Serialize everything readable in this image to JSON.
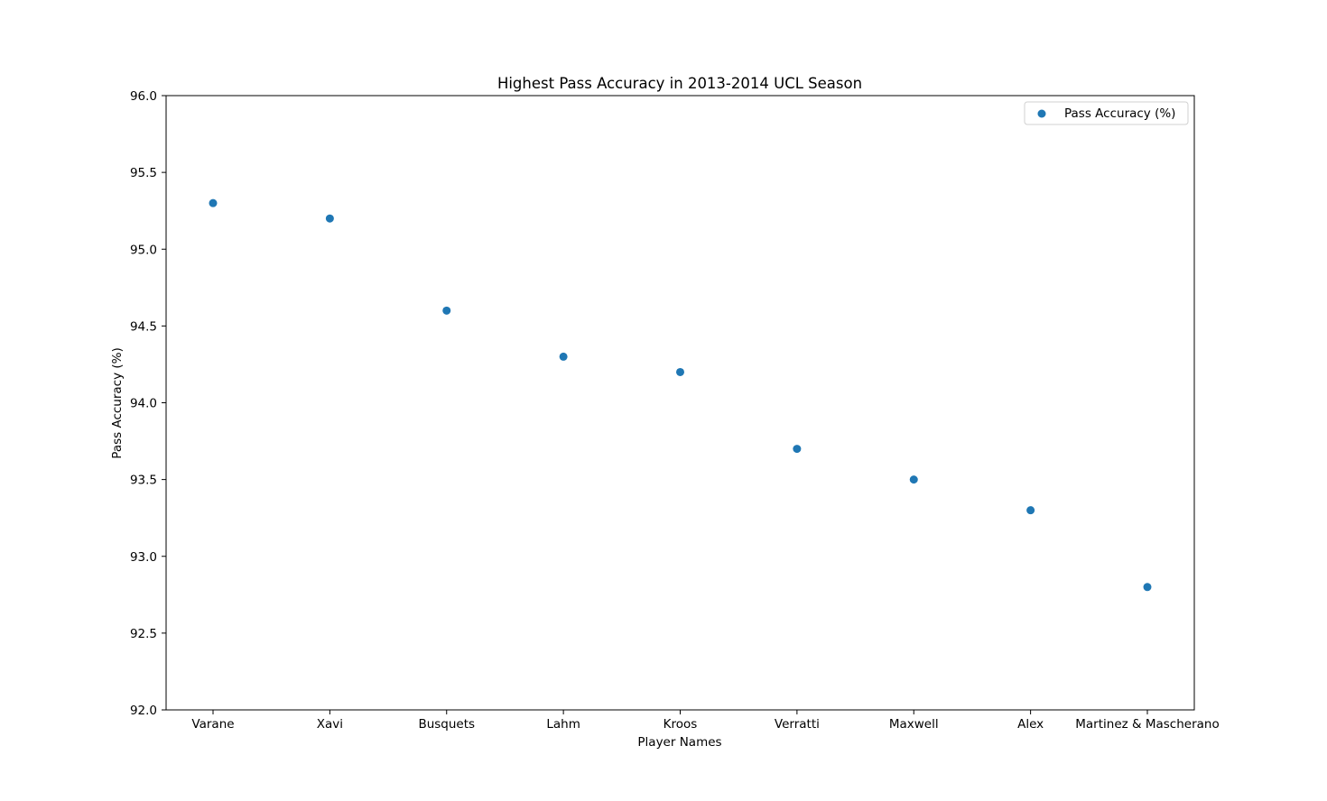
{
  "chart_data": {
    "type": "scatter",
    "title": "Highest Pass Accuracy in 2013-2014 UCL Season",
    "xlabel": "Player Names",
    "ylabel": "Pass Accuracy (%)",
    "categories": [
      "Varane",
      "Xavi",
      "Busquets",
      "Lahm",
      "Kroos",
      "Verratti",
      "Maxwell",
      "Alex",
      "Martinez & Mascherano"
    ],
    "series": [
      {
        "name": "Pass Accuracy (%)",
        "values": [
          95.3,
          95.2,
          94.6,
          94.3,
          94.2,
          93.7,
          93.5,
          93.3,
          92.8
        ],
        "color": "#1f77b4"
      }
    ],
    "ylim": [
      92.0,
      96.0
    ],
    "yticks": [
      "92.0",
      "92.5",
      "93.0",
      "93.5",
      "94.0",
      "94.5",
      "95.0",
      "95.5",
      "96.0"
    ],
    "grid": false,
    "legend_position": "top-right"
  }
}
